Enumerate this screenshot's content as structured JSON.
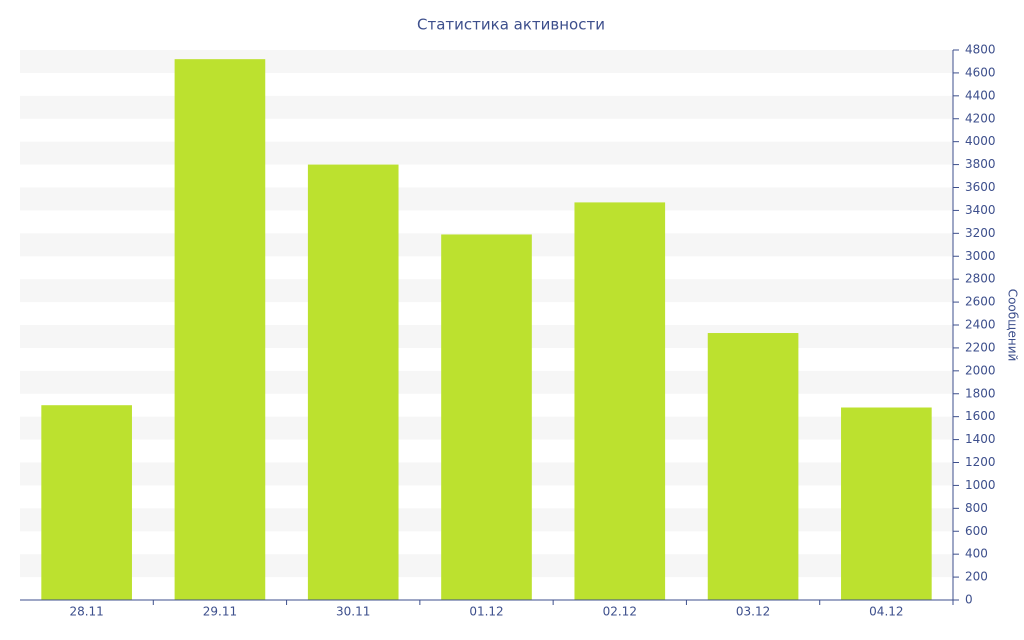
{
  "chart_data": {
    "type": "bar",
    "title": "Статистика активности",
    "y_label": "Сообщений",
    "categories": [
      "28.11",
      "29.11",
      "30.11",
      "01.12",
      "02.12",
      "03.12",
      "04.12"
    ],
    "values": [
      1700,
      4720,
      3800,
      3190,
      3470,
      2330,
      1680
    ],
    "color": "#bce12f",
    "ylim": [
      0,
      4800
    ],
    "yticks": [
      0,
      200,
      400,
      600,
      800,
      1000,
      1200,
      1400,
      1600,
      1800,
      2000,
      2200,
      2400,
      2600,
      2800,
      3000,
      3200,
      3400,
      3600,
      3800,
      4000,
      4200,
      4400,
      4600,
      4800
    ],
    "grid": true
  }
}
